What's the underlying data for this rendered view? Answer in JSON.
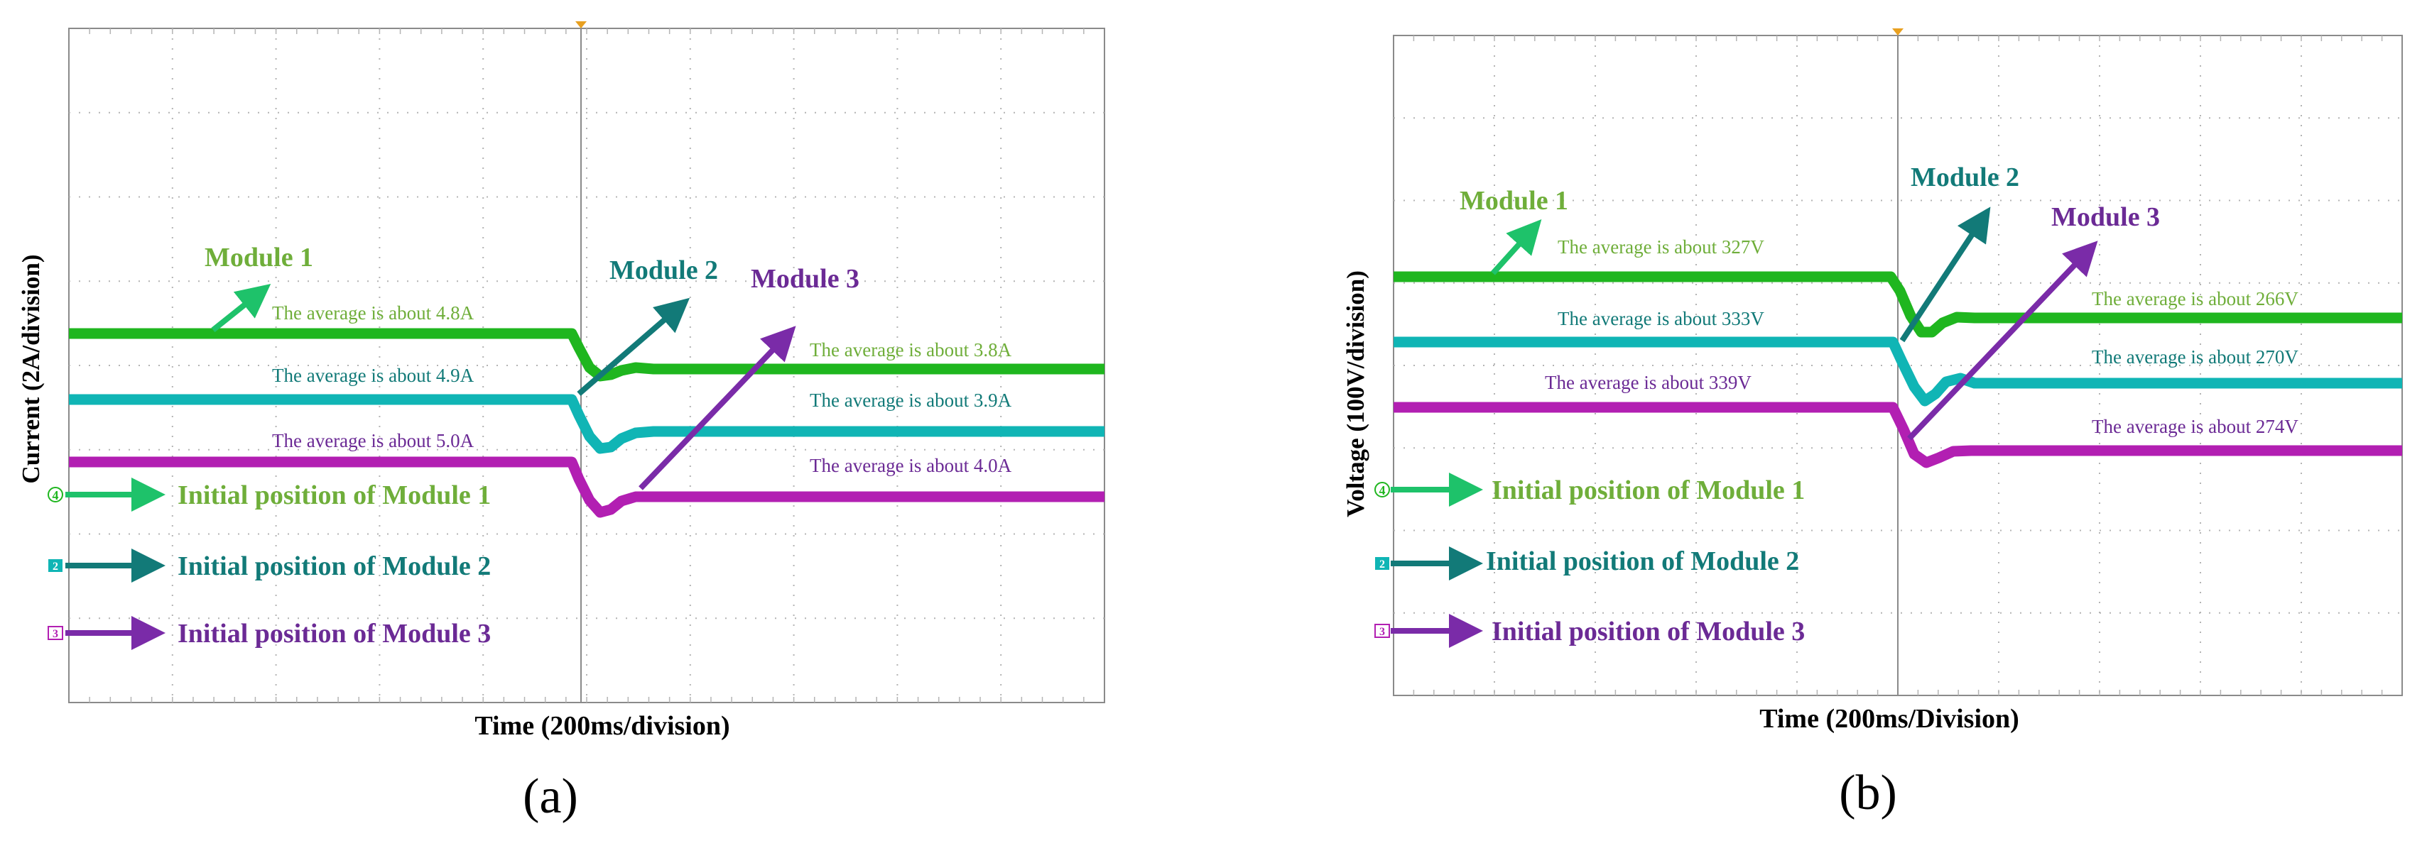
{
  "figure": {
    "panels": [
      {
        "id": "a",
        "caption": "(a)",
        "title": "",
        "xlabel": "Time (200ms/division)",
        "ylabel": "Current (2A/division)",
        "module_labels": [
          "Module 1",
          "Module 2",
          "Module 3"
        ],
        "annotations": {
          "m1_before": "The average is about 4.8A",
          "m2_before": "The average is about 4.9A",
          "m3_before": "The average is about 5.0A",
          "m1_after": "The average is about 3.8A",
          "m2_after": "The average is about 3.9A",
          "m3_after": "The average is about 4.0A"
        },
        "initial_positions": [
          {
            "marker": "4",
            "label": "Initial position of Module 1"
          },
          {
            "marker": "2",
            "label": "Initial position of Module 2"
          },
          {
            "marker": "3",
            "label": "Initial position of Module 3"
          }
        ]
      },
      {
        "id": "b",
        "caption": "(b)",
        "title": "",
        "xlabel": "Time (200ms/Division)",
        "ylabel": "Voltage (100V/division)",
        "module_labels": [
          "Module 1",
          "Module 2",
          "Module 3"
        ],
        "annotations": {
          "m1_before": "The average is about 327V",
          "m2_before": "The average is about 333V",
          "m3_before": "The average  is about 339V",
          "m1_after": "The average  is about 266V",
          "m2_after": "The average is about 270V",
          "m3_after": "The average is about 274V"
        },
        "initial_positions": [
          {
            "marker": "4",
            "label": "Initial position of Module 1"
          },
          {
            "marker": "2",
            "label": "Initial position of Module 2"
          },
          {
            "marker": "3",
            "label": "Initial position of Module 3"
          }
        ]
      }
    ]
  },
  "chart_data": [
    {
      "type": "line",
      "title": "",
      "xlabel": "Time (200ms/division)",
      "ylabel": "Current (2A/division)",
      "x_unit": "division",
      "y_unit": "A",
      "grid": true,
      "xlim_div": [
        0,
        10
      ],
      "ylim_div": [
        0,
        8
      ],
      "step_time_div": 5,
      "series": [
        {
          "name": "Module 1",
          "before_avg": 4.8,
          "after_avg": 3.8
        },
        {
          "name": "Module 2",
          "before_avg": 4.9,
          "after_avg": 3.9
        },
        {
          "name": "Module 3",
          "before_avg": 5.0,
          "after_avg": 4.0
        }
      ]
    },
    {
      "type": "line",
      "title": "",
      "xlabel": "Time (200ms/Division)",
      "ylabel": "Voltage (100V/division)",
      "x_unit": "division",
      "y_unit": "V",
      "grid": true,
      "xlim_div": [
        0,
        10
      ],
      "ylim_div": [
        0,
        8
      ],
      "step_time_div": 5,
      "series": [
        {
          "name": "Module 1",
          "before_avg": 327,
          "after_avg": 266
        },
        {
          "name": "Module 2",
          "before_avg": 333,
          "after_avg": 270
        },
        {
          "name": "Module 3",
          "before_avg": 339,
          "after_avg": 274
        }
      ]
    }
  ],
  "colors": {
    "module1": "#1fb61f",
    "module1_text": "#6fae3a",
    "module1_arrow": "#1ec26a",
    "module2": "#10b5b5",
    "module2_text": "#127a78",
    "module3": "#b21fb2",
    "module3_text": "#6b2a95",
    "module3_arrow": "#7a2ba8",
    "grid": "#b4b4b4",
    "frame": "#8a8a8a",
    "trigger": "#e8a020"
  }
}
